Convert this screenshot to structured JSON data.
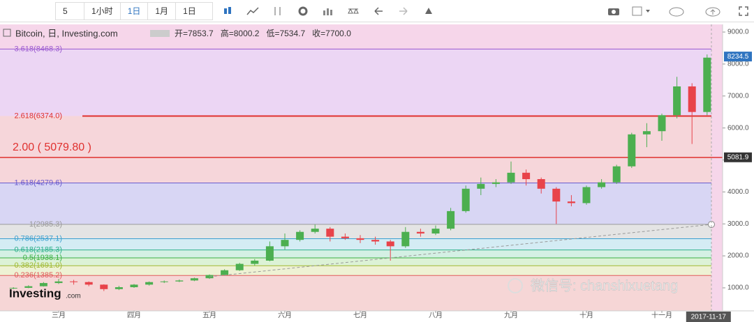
{
  "toolbar": {
    "items": [
      "5",
      "1小时",
      "1日",
      "1月",
      "1日"
    ]
  },
  "chart_data": {
    "type": "candlestick",
    "title": "Bitcoin, 日, Investing.com",
    "ohlc_legend": [
      "开=7853.7",
      "高=8000.2",
      "低=7534.7",
      "收=7700.0"
    ],
    "categories": [
      null,
      null,
      null,
      "三月",
      null,
      null,
      null,
      null,
      "四月",
      null,
      null,
      null,
      null,
      "五月",
      null,
      null,
      null,
      null,
      "六月",
      null,
      null,
      null,
      null,
      "七月",
      null,
      null,
      null,
      null,
      "八月",
      null,
      null,
      null,
      null,
      "九月",
      null,
      null,
      null,
      null,
      "十月",
      null,
      null,
      null,
      null,
      "十一月",
      null,
      null,
      "2017-11-17"
    ],
    "open": [
      980,
      1000,
      1050,
      1150,
      1200,
      1180,
      1100,
      960,
      1020,
      1100,
      1180,
      1200,
      1230,
      1300,
      1400,
      1550,
      1750,
      1850,
      2300,
      2500,
      2750,
      2850,
      2600,
      2550,
      2500,
      2450,
      2300,
      2750,
      2700,
      2850,
      3400,
      4100,
      4250,
      4300,
      4600,
      4400,
      4100,
      3700,
      3650,
      4150,
      4300,
      4800,
      5800,
      5900,
      6400,
      7300,
      6500
    ],
    "high": [
      1020,
      1080,
      1180,
      1280,
      1250,
      1200,
      1110,
      1060,
      1120,
      1200,
      1230,
      1260,
      1320,
      1420,
      1580,
      1780,
      1900,
      2450,
      2700,
      2800,
      2980,
      2900,
      2700,
      2650,
      2600,
      2500,
      2900,
      2850,
      2950,
      3500,
      4200,
      4450,
      4400,
      4950,
      4700,
      4450,
      4150,
      3900,
      4200,
      4400,
      4850,
      5850,
      6150,
      6450,
      7600,
      7400,
      8300
    ],
    "low": [
      960,
      990,
      1040,
      1120,
      1100,
      1050,
      900,
      930,
      1000,
      1070,
      1150,
      1180,
      1210,
      1280,
      1380,
      1530,
      1700,
      1830,
      2200,
      2450,
      2700,
      2450,
      2500,
      2400,
      2350,
      1850,
      2250,
      2600,
      2650,
      2800,
      3350,
      3900,
      4150,
      4250,
      4200,
      3950,
      3000,
      3550,
      3600,
      4100,
      4250,
      4750,
      5400,
      5600,
      6300,
      5500,
      6400
    ],
    "close": [
      1000,
      1050,
      1150,
      1200,
      1180,
      1100,
      960,
      1020,
      1100,
      1180,
      1200,
      1230,
      1300,
      1400,
      1550,
      1750,
      1850,
      2300,
      2500,
      2750,
      2850,
      2600,
      2550,
      2500,
      2450,
      2300,
      2750,
      2700,
      2850,
      3400,
      4100,
      4250,
      4300,
      4600,
      4400,
      4100,
      3700,
      3650,
      4150,
      4300,
      4800,
      5800,
      5900,
      6400,
      7300,
      6500,
      8200
    ],
    "up_color": "#4caf50",
    "down_color": "#e8434a",
    "ylim": [
      280,
      9240
    ],
    "yticks": [
      {
        "value": 1000,
        "label": "1000.0"
      },
      {
        "value": 2000,
        "label": "2000.0"
      },
      {
        "value": 3000,
        "label": "3000.0"
      },
      {
        "value": 4000,
        "label": "4000.0"
      },
      {
        "value": 5000,
        "label": "5000.0"
      },
      {
        "value": 6000,
        "label": "6000.0"
      },
      {
        "value": 7000,
        "label": "7000.0"
      },
      {
        "value": 8000,
        "label": "8000.0"
      },
      {
        "value": 9000,
        "label": "9000.0"
      }
    ],
    "fib_levels": [
      {
        "label": "3.618(8468.3)",
        "value": 8468.3,
        "color": "#9b59d0",
        "fill": "#ecd6f4"
      },
      {
        "label": "2.618(6374.0)",
        "value": 6374.0,
        "color": "#e0312f",
        "fill": "#f6d6da"
      },
      {
        "label": "1.618(4279.6)",
        "value": 4279.6,
        "color": "#6a5acd",
        "fill": "#d8d6f4"
      },
      {
        "label": "1(2985.3)",
        "value": 2985.3,
        "color": "#999999",
        "fill": "#e4e4e4"
      },
      {
        "label": "0.786(2537.1)",
        "value": 2537.1,
        "color": "#3aa0d0",
        "fill": "#d4ecf4"
      },
      {
        "label": "0.618(2185.3)",
        "value": 2185.3,
        "color": "#2eb08a",
        "fill": "#d4f0e4"
      },
      {
        "label": "0.5(1938.1)",
        "value": 1938.1,
        "color": "#3cb043",
        "fill": "#dcf2d6"
      },
      {
        "label": "0.382(1691.0)",
        "value": 1691.0,
        "color": "#a0b830",
        "fill": "#eef2d4"
      },
      {
        "label": "0.236(1385.2)",
        "value": 1385.2,
        "color": "#e05a5a",
        "fill": "#f6d6d6"
      }
    ],
    "annotation": {
      "label": "2.00 ( 5079.80 )",
      "value": 5079.8,
      "color": "#e0312f"
    },
    "price_labels": [
      {
        "value": 8234.5,
        "color": "#2f74c0"
      },
      {
        "value": 5081.9,
        "color": "#333333"
      }
    ]
  },
  "watermark": {
    "logo": "Investing",
    "logo_suffix": ".com",
    "wechat": "微信号: chanshixuetang"
  }
}
